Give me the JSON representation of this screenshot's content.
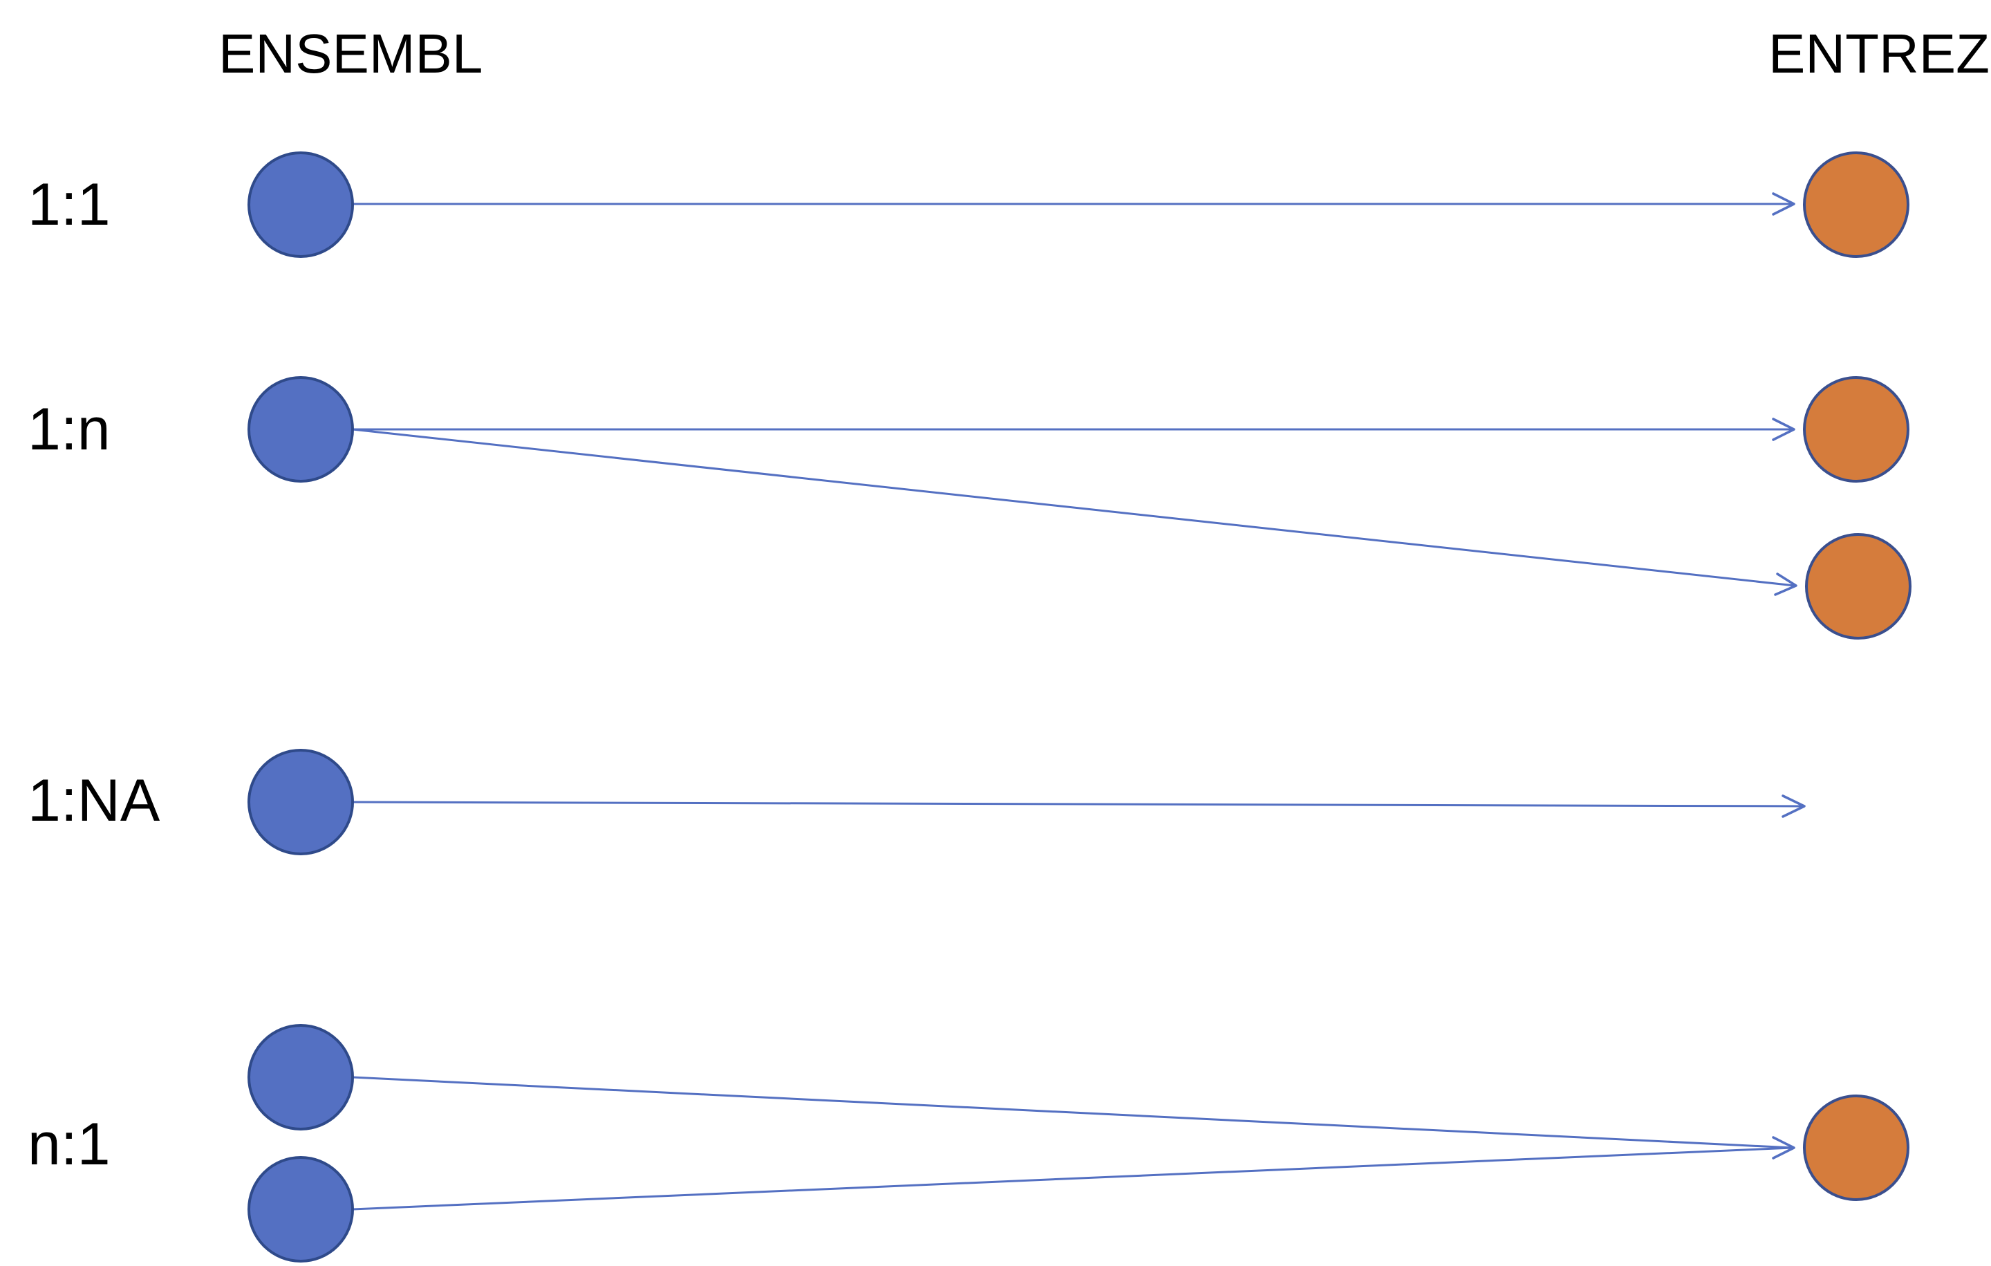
{
  "headers": {
    "ensembl": "ENSEMBL",
    "entrez": "ENTREZ"
  },
  "rows": [
    {
      "label": "1:1"
    },
    {
      "label": "1:n"
    },
    {
      "label": "1:NA"
    },
    {
      "label": "n:1"
    }
  ],
  "colors": {
    "ensembl_node": "#5470C2",
    "entrez_node": "#D57C3C",
    "edge": "#5470C2"
  }
}
